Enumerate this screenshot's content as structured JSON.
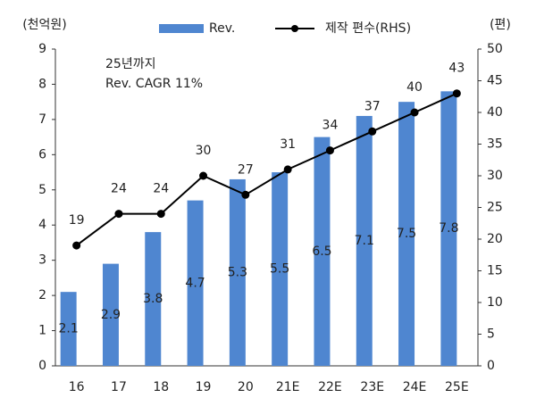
{
  "chart_data": {
    "type": "bar-line",
    "y_label": "(천억원)",
    "y2_label": "(편)",
    "annotations": [
      "25년까지",
      "Rev. CAGR 11%"
    ],
    "categories": [
      "16",
      "17",
      "18",
      "19",
      "20",
      "21E",
      "22E",
      "23E",
      "24E",
      "25E"
    ],
    "series": [
      {
        "name": "Rev.",
        "type": "bar",
        "color": "#4f86d0",
        "values": [
          2.1,
          2.9,
          3.8,
          4.7,
          5.3,
          5.5,
          6.5,
          7.1,
          7.5,
          7.8
        ]
      },
      {
        "name": "제작 편수(RHS)",
        "type": "line",
        "axis": "y2",
        "color": "#000000",
        "values": [
          19,
          24,
          24,
          30,
          27,
          31,
          34,
          37,
          40,
          43
        ]
      }
    ],
    "ylim": [
      0,
      9
    ],
    "yticks": [
      0,
      1,
      2,
      3,
      4,
      5,
      6,
      7,
      8,
      9
    ],
    "y2lim": [
      0,
      50
    ],
    "y2ticks": [
      0,
      5,
      10,
      15,
      20,
      25,
      30,
      35,
      40,
      45,
      50
    ]
  }
}
